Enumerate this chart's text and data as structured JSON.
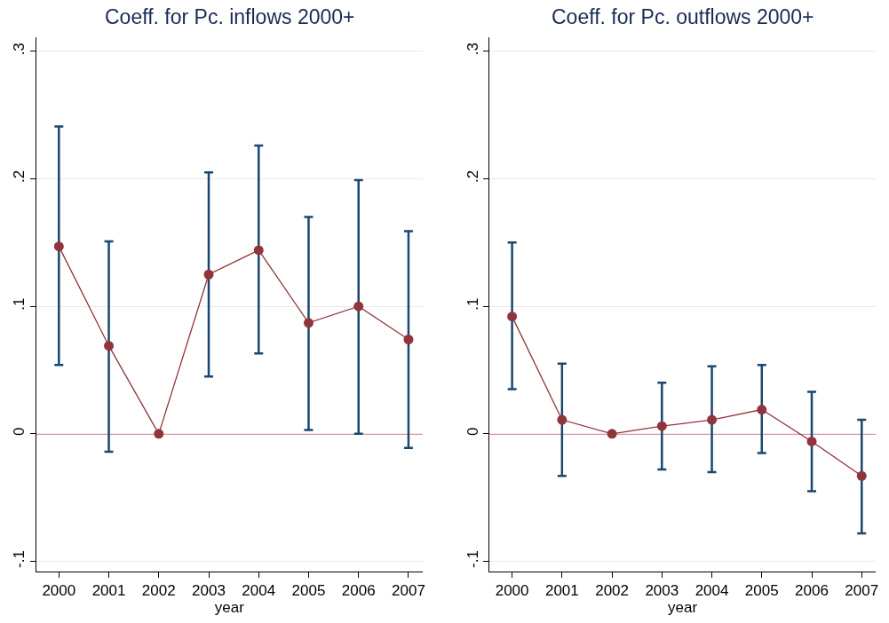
{
  "chart_data": [
    {
      "type": "line",
      "title": "Coeff. for Pc. inflows 2000+",
      "xlabel": "year",
      "x": [
        2000,
        2001,
        2002,
        2003,
        2004,
        2005,
        2006,
        2007
      ],
      "series": [
        {
          "color": "#90353b",
          "values": [
            0.147,
            0.069,
            0.0,
            0.125,
            0.144,
            0.087,
            0.1,
            0.074
          ],
          "errors": [
            [
              0.054,
              0.241
            ],
            [
              -0.014,
              0.151
            ],
            null,
            [
              0.045,
              0.205
            ],
            [
              0.063,
              0.226
            ],
            [
              0.003,
              0.17
            ],
            [
              0.0,
              0.199
            ],
            [
              -0.011,
              0.159
            ]
          ]
        }
      ],
      "marker": "circle",
      "line_style": "solid",
      "xlim": [
        1999.55,
        2007.28
      ],
      "xticks": [
        2000,
        2001,
        2002,
        2003,
        2004,
        2005,
        2006,
        2007
      ],
      "ylim": [
        -0.108,
        0.311
      ],
      "yticks": [
        {
          "value": -0.1,
          "label": "-.1"
        },
        0,
        {
          "value": 0.1,
          "label": ".1"
        },
        {
          "value": 0.2,
          "label": ".2"
        },
        {
          "value": 0.3,
          "label": ".3"
        }
      ],
      "grid": "y",
      "ref_lines": [
        {
          "axis": "y",
          "value": 0,
          "color": "#d01c3a"
        }
      ]
    },
    {
      "type": "line",
      "title": "Coeff. for Pc. outflows 2000+",
      "xlabel": "year",
      "x": [
        2000,
        2001,
        2002,
        2003,
        2004,
        2005,
        2006,
        2007
      ],
      "series": [
        {
          "color": "#90353b",
          "values": [
            0.092,
            0.011,
            0.0,
            0.006,
            0.011,
            0.019,
            -0.006,
            -0.033
          ],
          "errors": [
            [
              0.035,
              0.15
            ],
            [
              -0.033,
              0.055
            ],
            null,
            [
              -0.028,
              0.04
            ],
            [
              -0.03,
              0.053
            ],
            [
              -0.015,
              0.054
            ],
            [
              -0.045,
              0.033
            ],
            [
              -0.078,
              0.011
            ]
          ]
        }
      ],
      "marker": "circle",
      "line_style": "solid",
      "xlim": [
        1999.55,
        2007.28
      ],
      "xticks": [
        2000,
        2001,
        2002,
        2003,
        2004,
        2005,
        2006,
        2007
      ],
      "ylim": [
        -0.108,
        0.311
      ],
      "yticks": [
        {
          "value": -0.1,
          "label": "-.1"
        },
        0,
        {
          "value": 0.1,
          "label": ".1"
        },
        {
          "value": 0.2,
          "label": ".2"
        },
        {
          "value": 0.3,
          "label": ".3"
        }
      ],
      "grid": "y",
      "ref_lines": [
        {
          "axis": "y",
          "value": 0,
          "color": "#d01c3a"
        }
      ]
    }
  ]
}
